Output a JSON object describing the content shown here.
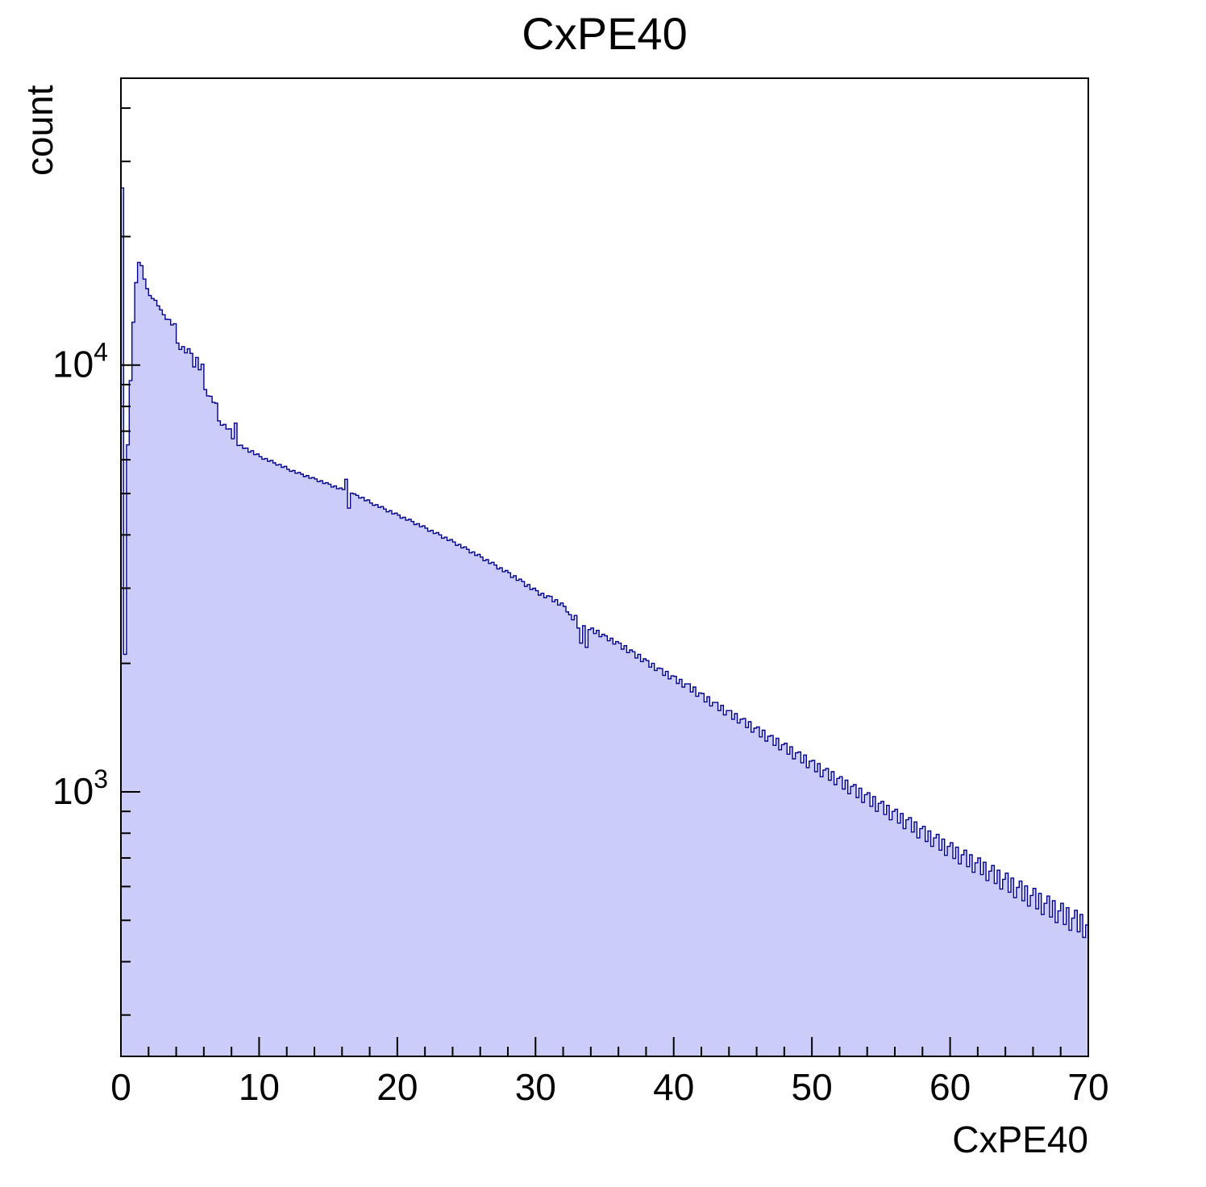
{
  "chart_data": {
    "type": "bar",
    "title": "CxPE40",
    "xlabel": "CxPE40",
    "ylabel": "count",
    "legend": null,
    "grid": false,
    "x_axis": {
      "min": 0,
      "max": 70,
      "major_ticks": [
        0,
        10,
        20,
        30,
        40,
        50,
        60,
        70
      ],
      "tick_labels": [
        "0",
        "10",
        "20",
        "30",
        "40",
        "50",
        "60",
        "70"
      ],
      "minor_step": 2
    },
    "y_axis": {
      "scale": "log",
      "min": 240,
      "max": 47000,
      "major_ticks": [
        {
          "value": 1000,
          "base": "10",
          "exp": "3"
        },
        {
          "value": 10000,
          "base": "10",
          "exp": "4"
        }
      ]
    },
    "style": {
      "fill": "#ccccf9",
      "line": "#00008b",
      "frame": "#000000",
      "text": "#000000"
    },
    "bins": {
      "x_min": 0,
      "width": 0.2,
      "counts": [
        26000,
        2100,
        6500,
        9200,
        12600,
        15600,
        17400,
        17100,
        15900,
        15100,
        14550,
        14320,
        14180,
        13760,
        13470,
        13120,
        12800,
        12790,
        12420,
        12500,
        11260,
        10880,
        11050,
        10680,
        10920,
        10650,
        9900,
        10420,
        9750,
        10050,
        8760,
        8470,
        8450,
        8180,
        8140,
        7400,
        7230,
        7260,
        7080,
        7090,
        6720,
        7310,
        6480,
        6490,
        6380,
        6390,
        6250,
        6300,
        6170,
        6190,
        6100,
        6020,
        6040,
        5950,
        5980,
        5900,
        5830,
        5850,
        5760,
        5790,
        5700,
        5640,
        5660,
        5580,
        5600,
        5550,
        5480,
        5510,
        5430,
        5450,
        5410,
        5330,
        5360,
        5280,
        5300,
        5260,
        5180,
        5210,
        5130,
        5150,
        5110,
        5400,
        4620,
        5010,
        4990,
        4950,
        4880,
        4900,
        4810,
        4830,
        4750,
        4690,
        4710,
        4640,
        4660,
        4600,
        4530,
        4560,
        4480,
        4500,
        4450,
        4380,
        4400,
        4330,
        4350,
        4300,
        4230,
        4250,
        4180,
        4200,
        4150,
        4080,
        4100,
        4030,
        4050,
        4000,
        3930,
        3950,
        3880,
        3900,
        3850,
        3780,
        3800,
        3730,
        3750,
        3700,
        3630,
        3650,
        3580,
        3600,
        3550,
        3480,
        3500,
        3430,
        3450,
        3400,
        3330,
        3350,
        3280,
        3300,
        3260,
        3180,
        3210,
        3130,
        3150,
        3110,
        3030,
        3060,
        2980,
        3000,
        2960,
        2890,
        2920,
        2850,
        2880,
        2870,
        2790,
        2820,
        2740,
        2770,
        2720,
        2640,
        2600,
        2530,
        2590,
        2420,
        2230,
        2450,
        2180,
        2400,
        2420,
        2350,
        2390,
        2310,
        2340,
        2320,
        2260,
        2290,
        2220,
        2250,
        2230,
        2160,
        2200,
        2120,
        2150,
        2130,
        2060,
        2100,
        2020,
        2050,
        2030,
        1960,
        2000,
        1925,
        1950,
        1945,
        1875,
        1915,
        1840,
        1870,
        1865,
        1795,
        1835,
        1760,
        1790,
        1790,
        1715,
        1760,
        1675,
        1705,
        1700,
        1625,
        1670,
        1590,
        1620,
        1620,
        1550,
        1595,
        1515,
        1550,
        1550,
        1480,
        1525,
        1450,
        1480,
        1485,
        1415,
        1460,
        1380,
        1410,
        1420,
        1345,
        1395,
        1315,
        1350,
        1355,
        1285,
        1335,
        1255,
        1290,
        1300,
        1225,
        1275,
        1195,
        1235,
        1240,
        1170,
        1220,
        1140,
        1180,
        1185,
        1115,
        1165,
        1085,
        1125,
        1135,
        1065,
        1115,
        1040,
        1075,
        1085,
        1015,
        1065,
        990,
        1030,
        1040,
        970,
        1020,
        945,
        985,
        995,
        925,
        975,
        900,
        940,
        950,
        885,
        930,
        860,
        900,
        910,
        845,
        890,
        820,
        860,
        870,
        805,
        850,
        780,
        820,
        830,
        765,
        810,
        745,
        780,
        795,
        730,
        775,
        710,
        745,
        760,
        698,
        742,
        678,
        712,
        730,
        668,
        712,
        648,
        682,
        700,
        640,
        684,
        620,
        652,
        672,
        610,
        655,
        592,
        624,
        645,
        582,
        628,
        565,
        597,
        618,
        556,
        602,
        540,
        572,
        594,
        532,
        578,
        516,
        548,
        570,
        509,
        556,
        494,
        526,
        548,
        489,
        535,
        474,
        506,
        528,
        470,
        516,
        456,
        488
      ]
    }
  }
}
